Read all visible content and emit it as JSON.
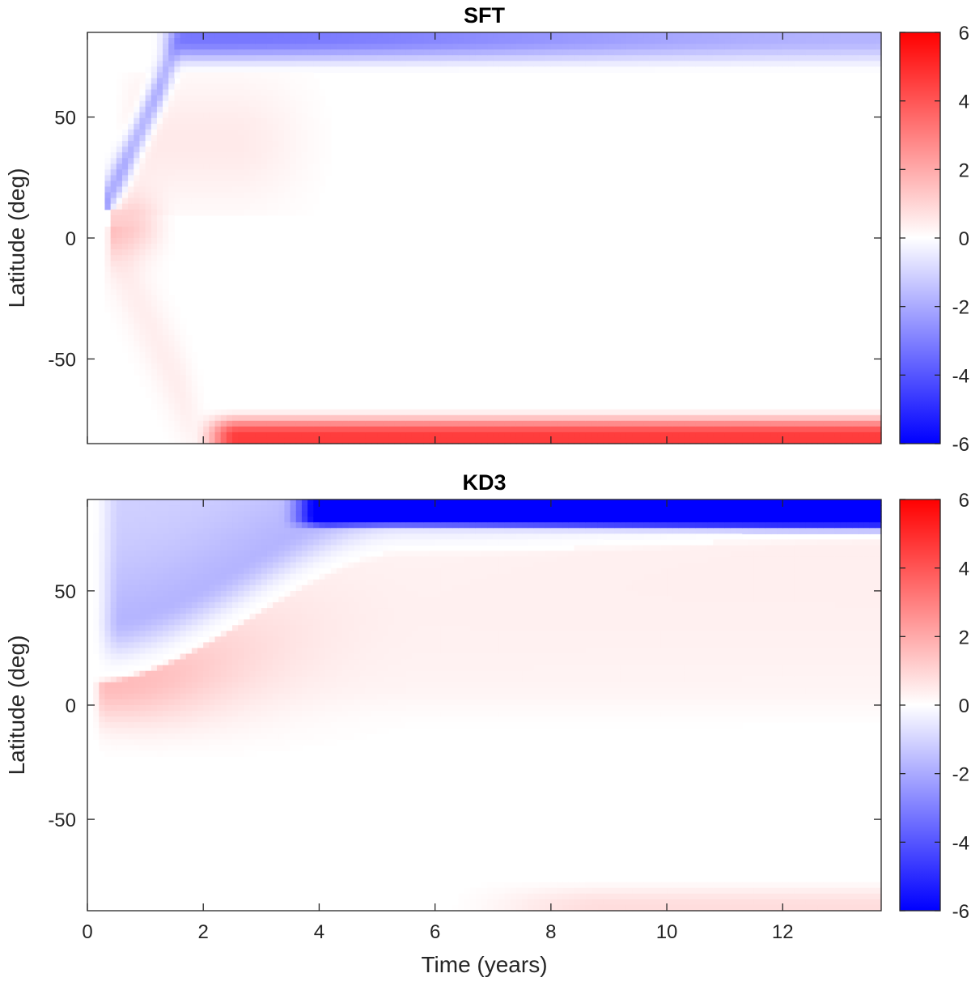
{
  "chart_data": [
    {
      "type": "heatmap",
      "title": "SFT",
      "xlabel": "",
      "ylabel": "Latitude (deg)",
      "xlim": [
        0,
        13.7
      ],
      "ylim": [
        -85,
        85
      ],
      "xticks": [
        0,
        2,
        4,
        6,
        8,
        10,
        12
      ],
      "yticks": [
        -50,
        0,
        50
      ],
      "colorbar": {
        "min": -6,
        "max": 6,
        "ticks": [
          -6,
          -4,
          -2,
          0,
          2,
          4,
          6
        ]
      },
      "colormap": {
        "low": "#0000ff",
        "mid": "#ffffff",
        "high": "#ff0000"
      },
      "features": [
        {
          "region": "north polar band",
          "lat_range": [
            74,
            85
          ],
          "t_start": 1.5,
          "value": -3.0
        },
        {
          "region": "south polar band",
          "lat_range": [
            -85,
            -74
          ],
          "t_start": 2.0,
          "value": 4.5
        },
        {
          "region": "poleward surge northern",
          "t_range": [
            0.4,
            1.5
          ],
          "lat_range": [
            15,
            80
          ],
          "value": -2.0
        },
        {
          "region": "equatorial emergence",
          "t_range": [
            0.4,
            1.0
          ],
          "lat_range": [
            -5,
            15
          ],
          "value": 1.2
        }
      ]
    },
    {
      "type": "heatmap",
      "title": "KD3",
      "xlabel": "Time (years)",
      "ylabel": "Latitude (deg)",
      "xlim": [
        0,
        13.7
      ],
      "ylim": [
        -90,
        90
      ],
      "xticks": [
        0,
        2,
        4,
        6,
        8,
        10,
        12
      ],
      "yticks": [
        -50,
        0,
        50
      ],
      "colorbar": {
        "min": -6,
        "max": 6,
        "ticks": [
          -6,
          -4,
          -2,
          0,
          2,
          4,
          6
        ]
      },
      "colormap": {
        "low": "#0000ff",
        "mid": "#ffffff",
        "high": "#ff0000"
      },
      "features": [
        {
          "region": "north polar cap",
          "lat_range": [
            78,
            90
          ],
          "t_start": 4.0,
          "value": -6.0
        },
        {
          "region": "northern blue wedge",
          "t_range": [
            0.1,
            4.0
          ],
          "lat_range": [
            12,
            85
          ],
          "value": -2.0
        },
        {
          "region": "red wedge low latitudes",
          "t_range": [
            0.1,
            6.0
          ],
          "lat_range": [
            0,
            25
          ],
          "value": 1.2
        },
        {
          "region": "south polar weak",
          "lat_range": [
            -90,
            -75
          ],
          "t_start": 6.0,
          "value": 0.8
        }
      ]
    }
  ]
}
